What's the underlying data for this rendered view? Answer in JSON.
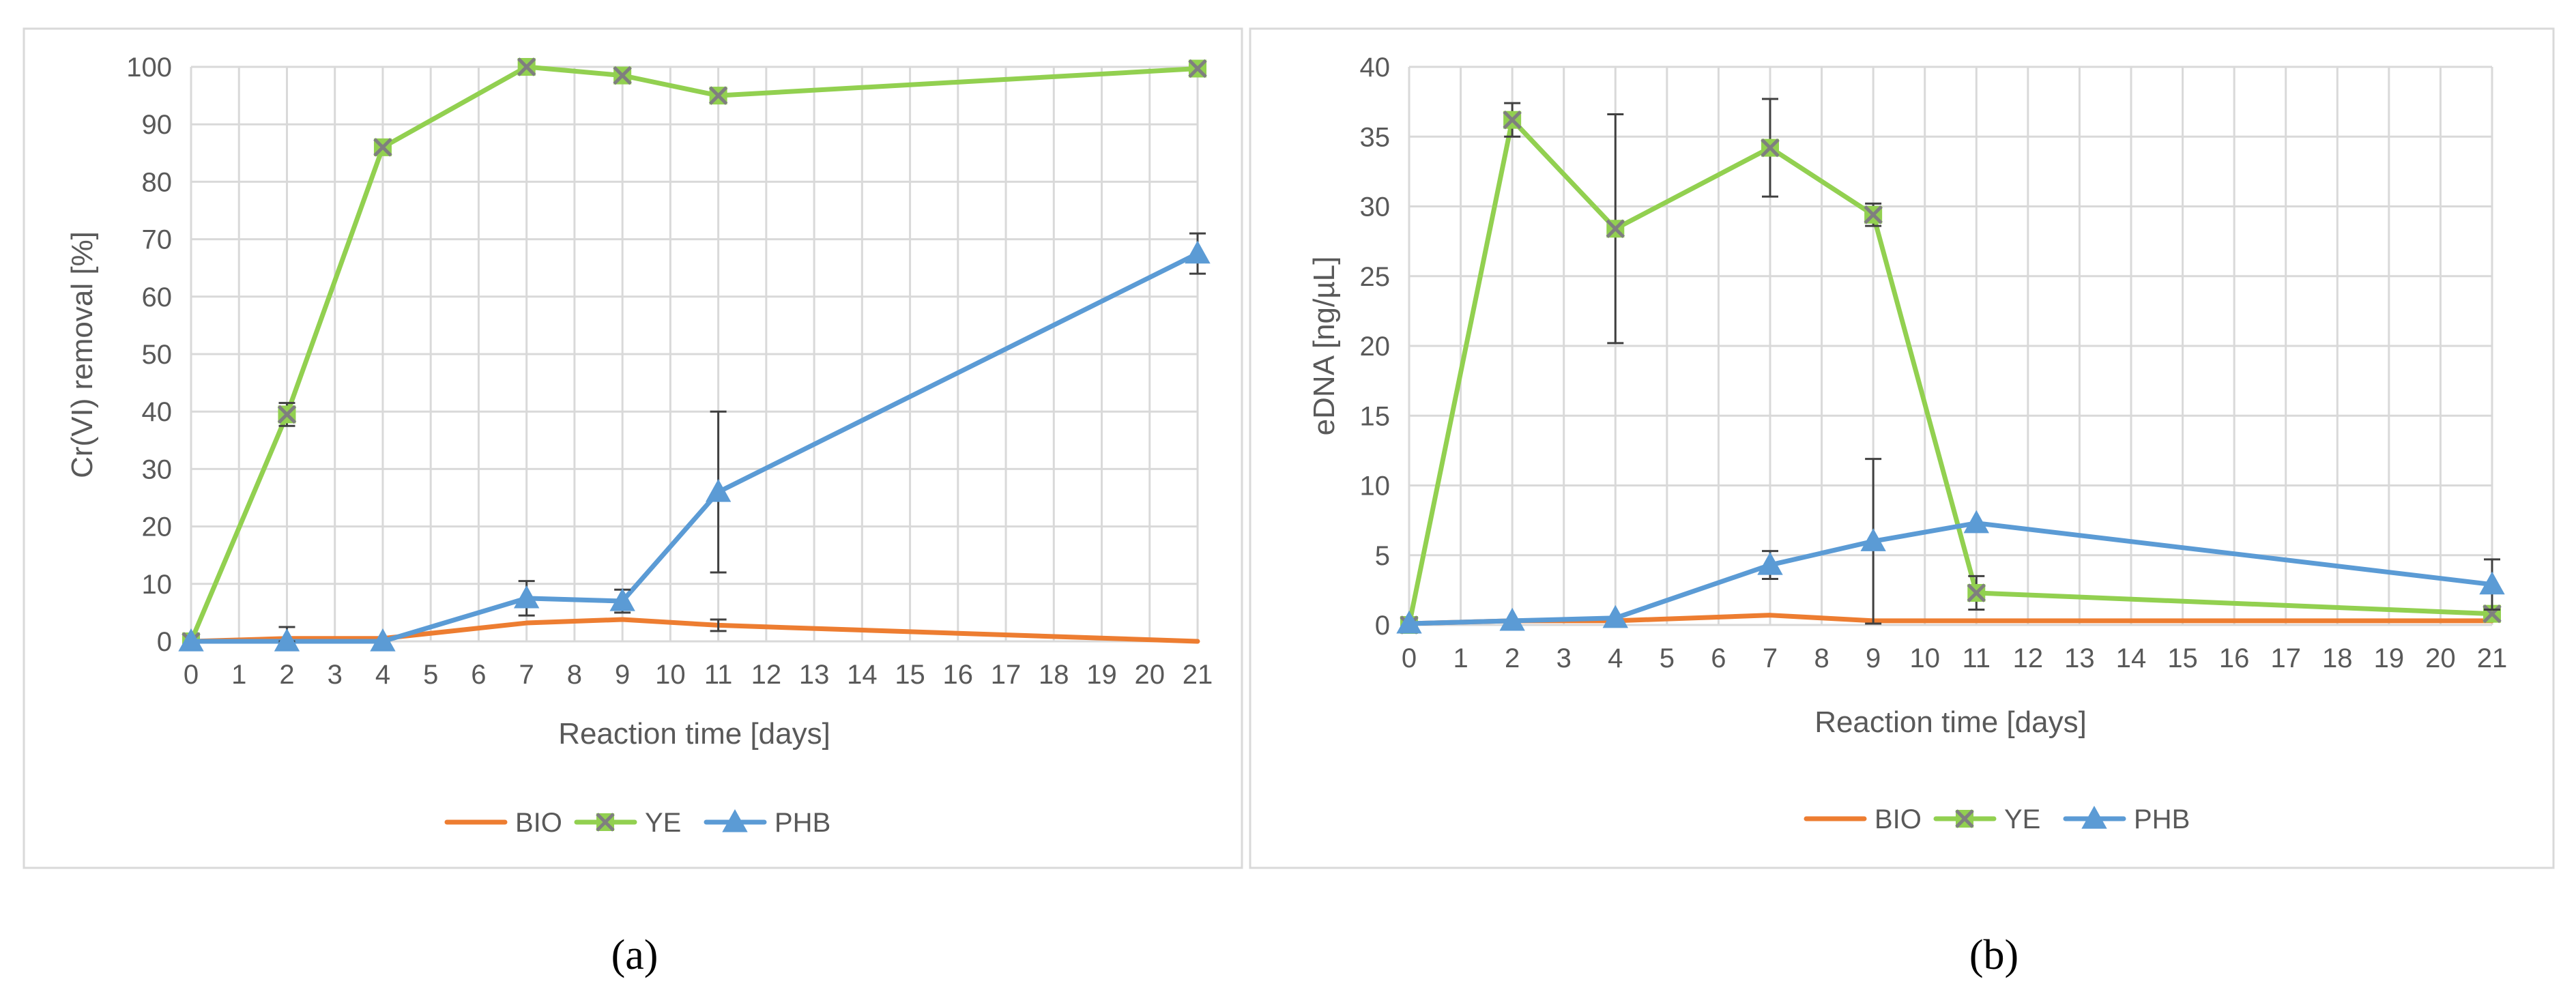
{
  "colors": {
    "BIO": "#ED7D31",
    "YE": "#92D050",
    "PHB": "#5B9BD5",
    "grid": "#D9D9D9",
    "axis_text": "#595959",
    "error_bar": "#404040",
    "marker_x": "#7F7F7F"
  },
  "chart_data": [
    {
      "type": "line",
      "panel_label": "(a)",
      "xlabel": "Reaction time [days]",
      "ylabel": "Cr(VI) removal  [%]",
      "xlim": [
        0,
        21
      ],
      "ylim": [
        0,
        100
      ],
      "xticks": [
        0,
        1,
        2,
        3,
        4,
        5,
        6,
        7,
        8,
        9,
        10,
        11,
        12,
        13,
        14,
        15,
        16,
        17,
        18,
        19,
        20,
        21
      ],
      "yticks": [
        0,
        10,
        20,
        30,
        40,
        50,
        60,
        70,
        80,
        90,
        100
      ],
      "grid": true,
      "legend_position": "bottom-center",
      "series": [
        {
          "name": "BIO",
          "marker": "none",
          "x": [
            0,
            2,
            4,
            7,
            9,
            11,
            21
          ],
          "y": [
            0,
            0.5,
            0.5,
            3.2,
            3.8,
            2.8,
            0
          ],
          "err": [
            0,
            0,
            0,
            0,
            0,
            1,
            0
          ]
        },
        {
          "name": "YE",
          "marker": "x-square",
          "x": [
            0,
            2,
            4,
            7,
            9,
            11,
            21
          ],
          "y": [
            0,
            39.5,
            86,
            100,
            98.5,
            95,
            99.7
          ],
          "err": [
            0,
            2,
            0,
            0,
            0,
            0,
            0
          ]
        },
        {
          "name": "PHB",
          "marker": "triangle",
          "x": [
            0,
            2,
            4,
            7,
            9,
            11,
            21
          ],
          "y": [
            0,
            0,
            0,
            7.5,
            7,
            26,
            67.5
          ],
          "err": [
            0,
            2.5,
            0,
            3,
            2,
            14,
            3.5
          ]
        }
      ]
    },
    {
      "type": "line",
      "panel_label": "(b)",
      "xlabel": "Reaction time [days]",
      "ylabel": "eDNA  [ng/µL]",
      "xlim": [
        0,
        21
      ],
      "ylim": [
        0,
        40
      ],
      "xticks": [
        0,
        1,
        2,
        3,
        4,
        5,
        6,
        7,
        8,
        9,
        10,
        11,
        12,
        13,
        14,
        15,
        16,
        17,
        18,
        19,
        20,
        21
      ],
      "yticks": [
        0,
        5,
        10,
        15,
        20,
        25,
        30,
        35,
        40
      ],
      "grid": true,
      "legend_position": "bottom-center",
      "series": [
        {
          "name": "BIO",
          "marker": "none",
          "x": [
            0,
            2,
            4,
            7,
            9,
            11,
            21
          ],
          "y": [
            0.1,
            0.3,
            0.3,
            0.7,
            0.3,
            0.3,
            0.3
          ],
          "err": [
            0,
            0,
            0,
            0,
            0,
            0,
            0
          ]
        },
        {
          "name": "YE",
          "marker": "x-square",
          "x": [
            0,
            2,
            4,
            7,
            9,
            11,
            21
          ],
          "y": [
            0,
            36.2,
            28.4,
            34.2,
            29.4,
            2.3,
            0.8
          ],
          "err": [
            0,
            1.2,
            8.2,
            3.5,
            0.8,
            1.2,
            0
          ]
        },
        {
          "name": "PHB",
          "marker": "triangle",
          "x": [
            0,
            2,
            4,
            7,
            9,
            11,
            21
          ],
          "y": [
            0.1,
            0.3,
            0.5,
            4.3,
            6.0,
            7.3,
            2.9
          ],
          "err": [
            0,
            0,
            0,
            1.0,
            5.9,
            0,
            1.8
          ]
        }
      ]
    }
  ]
}
